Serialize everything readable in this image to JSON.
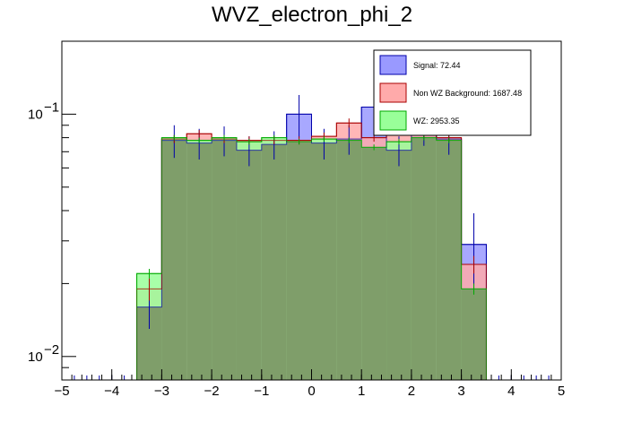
{
  "chart_data": {
    "type": "histogram",
    "title": "WVZ_electron_phi_2",
    "xlabel": "",
    "ylabel": "",
    "xlim": [
      -5,
      5
    ],
    "ylim": [
      0.008,
      0.2
    ],
    "yscale": "log",
    "grid": false,
    "legend_position": "top-right",
    "x_ticks": [
      -5,
      -4,
      -3,
      -2,
      -1,
      0,
      1,
      2,
      3,
      4,
      5
    ],
    "bin_edges": [
      -3.5,
      -3.0,
      -2.5,
      -2.0,
      -1.5,
      -1.0,
      -0.5,
      0.0,
      0.5,
      1.0,
      1.5,
      2.0,
      2.5,
      3.0,
      3.5
    ],
    "series": [
      {
        "name": "Signal: 72.44",
        "color": "#9999ff",
        "edge_color": "#0000aa",
        "values": [
          0.016,
          0.078,
          0.076,
          0.078,
          0.071,
          0.075,
          0.1,
          0.076,
          0.079,
          0.107,
          0.071,
          0.087,
          0.079,
          0.029
        ],
        "errors": [
          0.003,
          0.012,
          0.011,
          0.011,
          0.01,
          0.01,
          0.02,
          0.011,
          0.011,
          0.02,
          0.01,
          0.013,
          0.011,
          0.01
        ]
      },
      {
        "name": "Non WZ Background: 1687.48",
        "color": "#ffaaaa",
        "edge_color": "#aa0000",
        "values": [
          0.019,
          0.079,
          0.083,
          0.079,
          0.078,
          0.078,
          0.078,
          0.081,
          0.092,
          0.08,
          0.085,
          0.083,
          0.08,
          0.024
        ],
        "errors": [
          0.002,
          0.003,
          0.003,
          0.003,
          0.003,
          0.003,
          0.003,
          0.003,
          0.004,
          0.003,
          0.003,
          0.003,
          0.003,
          0.002
        ]
      },
      {
        "name": "WZ: 2953.35",
        "color": "#99ff99",
        "edge_color": "#00aa00",
        "values": [
          0.022,
          0.08,
          0.078,
          0.08,
          0.077,
          0.08,
          0.077,
          0.079,
          0.078,
          0.073,
          0.077,
          0.08,
          0.078,
          0.019
        ],
        "errors": [
          0.001,
          0.002,
          0.002,
          0.002,
          0.002,
          0.002,
          0.002,
          0.002,
          0.002,
          0.002,
          0.002,
          0.002,
          0.002,
          0.001
        ]
      }
    ]
  }
}
